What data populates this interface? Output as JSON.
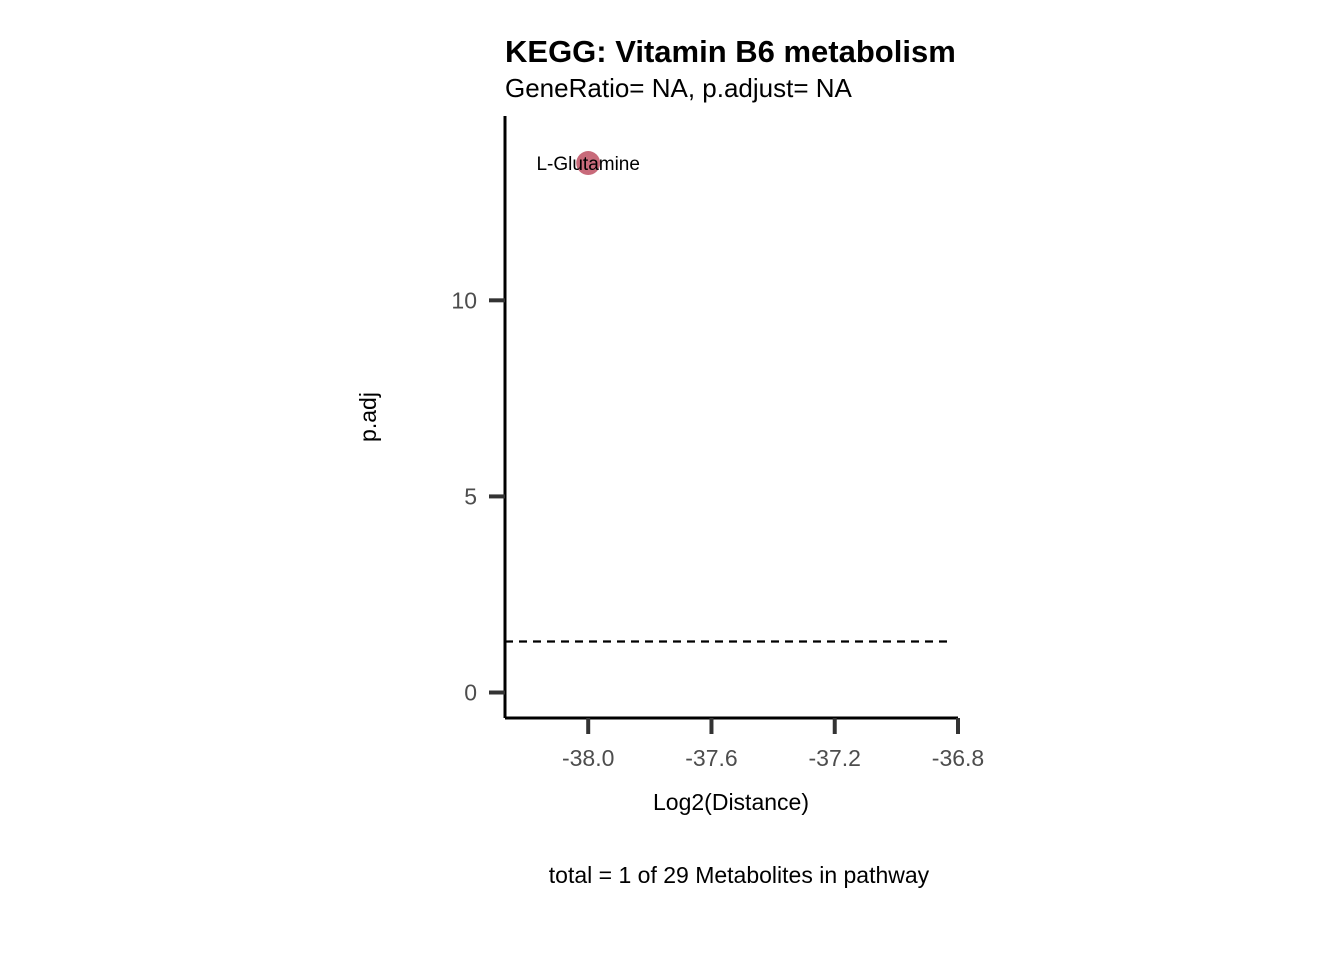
{
  "chart_data": {
    "type": "scatter",
    "title": "KEGG: Vitamin B6 metabolism",
    "subtitle": "GeneRatio= NA, p.adjust= NA",
    "xlabel": "Log2(Distance)",
    "ylabel": "p.adj",
    "caption": "total = 1 of 29 Metabolites in pathway",
    "xlim": [
      -38.27,
      -36.8
    ],
    "ylim": [
      -0.65,
      14.7
    ],
    "x_ticks": [
      -38.0,
      -37.6,
      -37.2,
      -36.8
    ],
    "x_tick_labels": [
      "-38.0",
      "-37.6",
      "-37.2",
      "-36.8"
    ],
    "y_ticks": [
      0,
      5,
      10
    ],
    "y_tick_labels": [
      "0",
      "5",
      "10"
    ],
    "threshold_y": 1.3,
    "points": [
      {
        "x": -38.0,
        "y": 13.5,
        "label": "L-Glutamine"
      }
    ],
    "colors": {
      "point": "#c25a6b",
      "axis": "#000000",
      "tick": "#333333",
      "threshold": "#000000"
    },
    "grid": false,
    "legend": "none"
  }
}
